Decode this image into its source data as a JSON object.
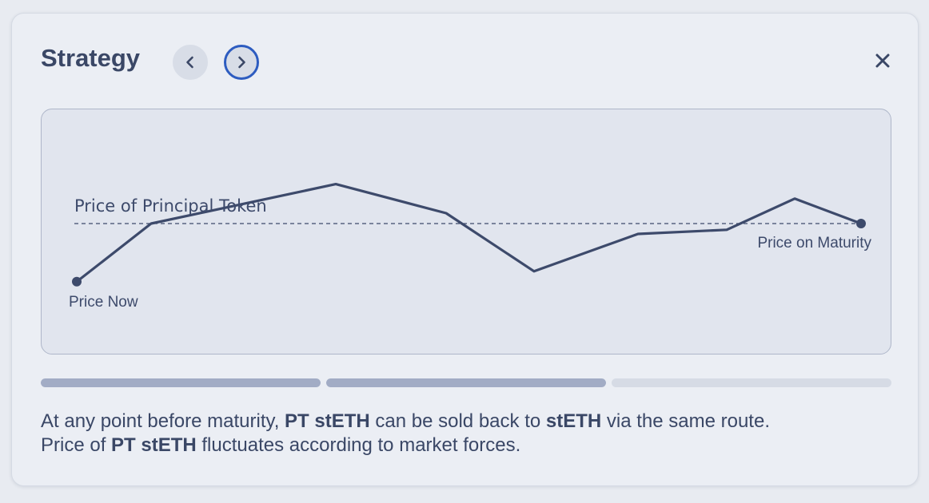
{
  "modal": {
    "title": "Strategy",
    "prev_icon": "chevron-left-icon",
    "next_icon": "chevron-right-icon",
    "close_icon": "close-icon"
  },
  "chart_data": {
    "type": "line",
    "labels": {
      "reference": "Price of Principal Token",
      "start": "Price Now",
      "end": "Price on Maturity"
    },
    "reference_value": 0.5,
    "path": [
      0.22,
      0.5,
      0.69,
      0.55,
      0.27,
      0.45,
      0.47,
      0.62,
      0.5
    ],
    "line_color": "#3d4a6b",
    "reference_style": "dashed"
  },
  "progress": {
    "steps": [
      1,
      1,
      0
    ]
  },
  "description": {
    "line1": [
      {
        "text": "At any point before maturity, ",
        "bold": false
      },
      {
        "text": "PT stETH",
        "bold": true
      },
      {
        "text": " can be sold back to ",
        "bold": false
      },
      {
        "text": "stETH",
        "bold": true
      },
      {
        "text": " via the same route.",
        "bold": false
      }
    ],
    "line2": [
      {
        "text": "Price of ",
        "bold": false
      },
      {
        "text": "PT stETH",
        "bold": true
      },
      {
        "text": " fluctuates according to market forces.",
        "bold": false
      }
    ]
  },
  "colors": {
    "text": "#3a4766",
    "accent": "#2d5cc0",
    "progress_filled": "#a2acc5",
    "progress_empty": "#d6dbe5"
  }
}
